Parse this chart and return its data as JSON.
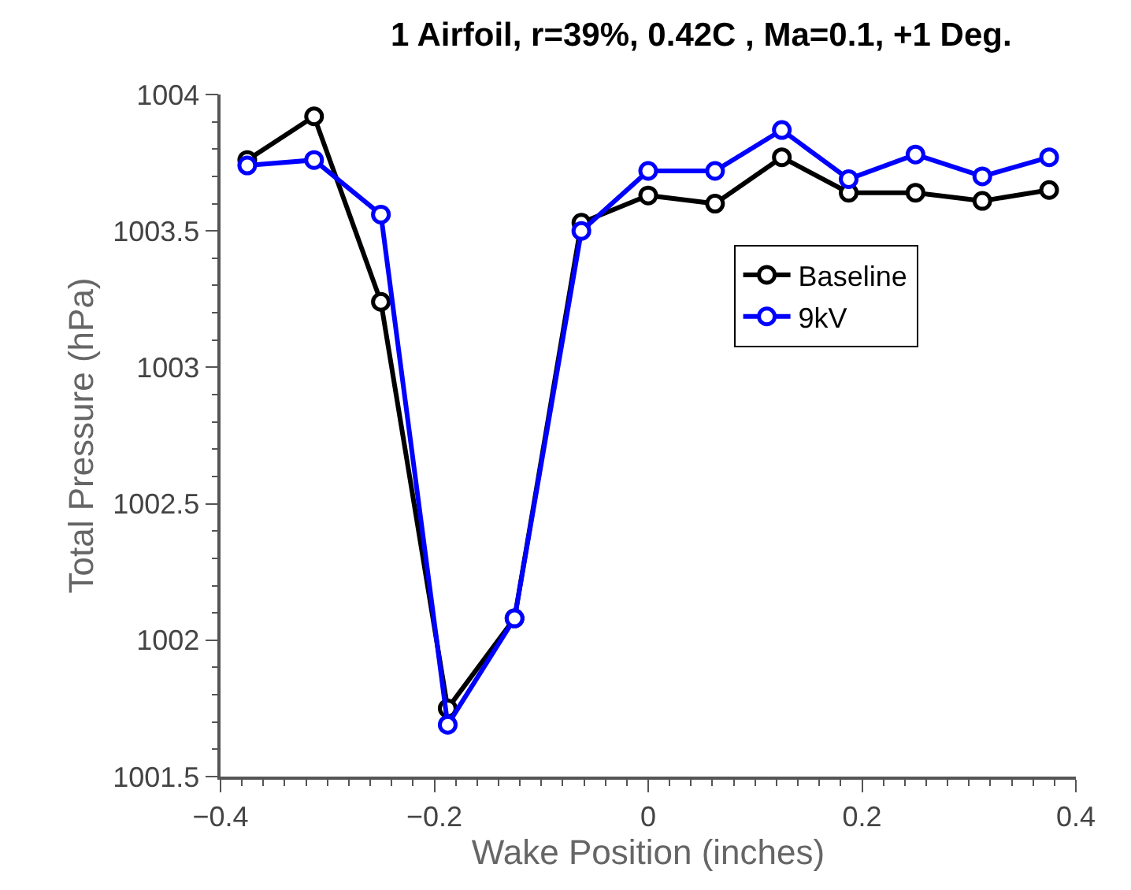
{
  "chart_data": {
    "type": "line",
    "title": "1 Airfoil, r=39%, 0.42C , Ma=0.1, +1 Deg.",
    "xlabel": "Wake Position (inches)",
    "ylabel": "Total Pressure (hPa)",
    "x": [
      -0.375,
      -0.3125,
      -0.25,
      -0.1875,
      -0.125,
      -0.0625,
      0,
      0.0625,
      0.125,
      0.1875,
      0.25,
      0.3125,
      0.375
    ],
    "series": [
      {
        "name": "Baseline",
        "color": "#000000",
        "values": [
          1003.76,
          1003.92,
          1003.24,
          1001.75,
          1002.08,
          1003.53,
          1003.63,
          1003.6,
          1003.77,
          1003.64,
          1003.64,
          1003.61,
          1003.65
        ]
      },
      {
        "name": "9kV",
        "color": "#0000ff",
        "values": [
          1003.74,
          1003.76,
          1003.56,
          1001.69,
          1002.08,
          1003.5,
          1003.72,
          1003.72,
          1003.87,
          1003.69,
          1003.78,
          1003.7,
          1003.77
        ]
      }
    ],
    "xlim": [
      -0.4,
      0.4
    ],
    "xticks": [
      {
        "value": -0.4,
        "label": "−0.4"
      },
      {
        "value": -0.2,
        "label": "−0.2"
      },
      0,
      0.2,
      0.4
    ],
    "ylim": [
      1001.5,
      1004
    ],
    "yticks": [
      1001.5,
      1002,
      1002.5,
      1003,
      1003.5,
      1004
    ],
    "legend": "top right",
    "marker": "circle",
    "line_style": "solid"
  }
}
